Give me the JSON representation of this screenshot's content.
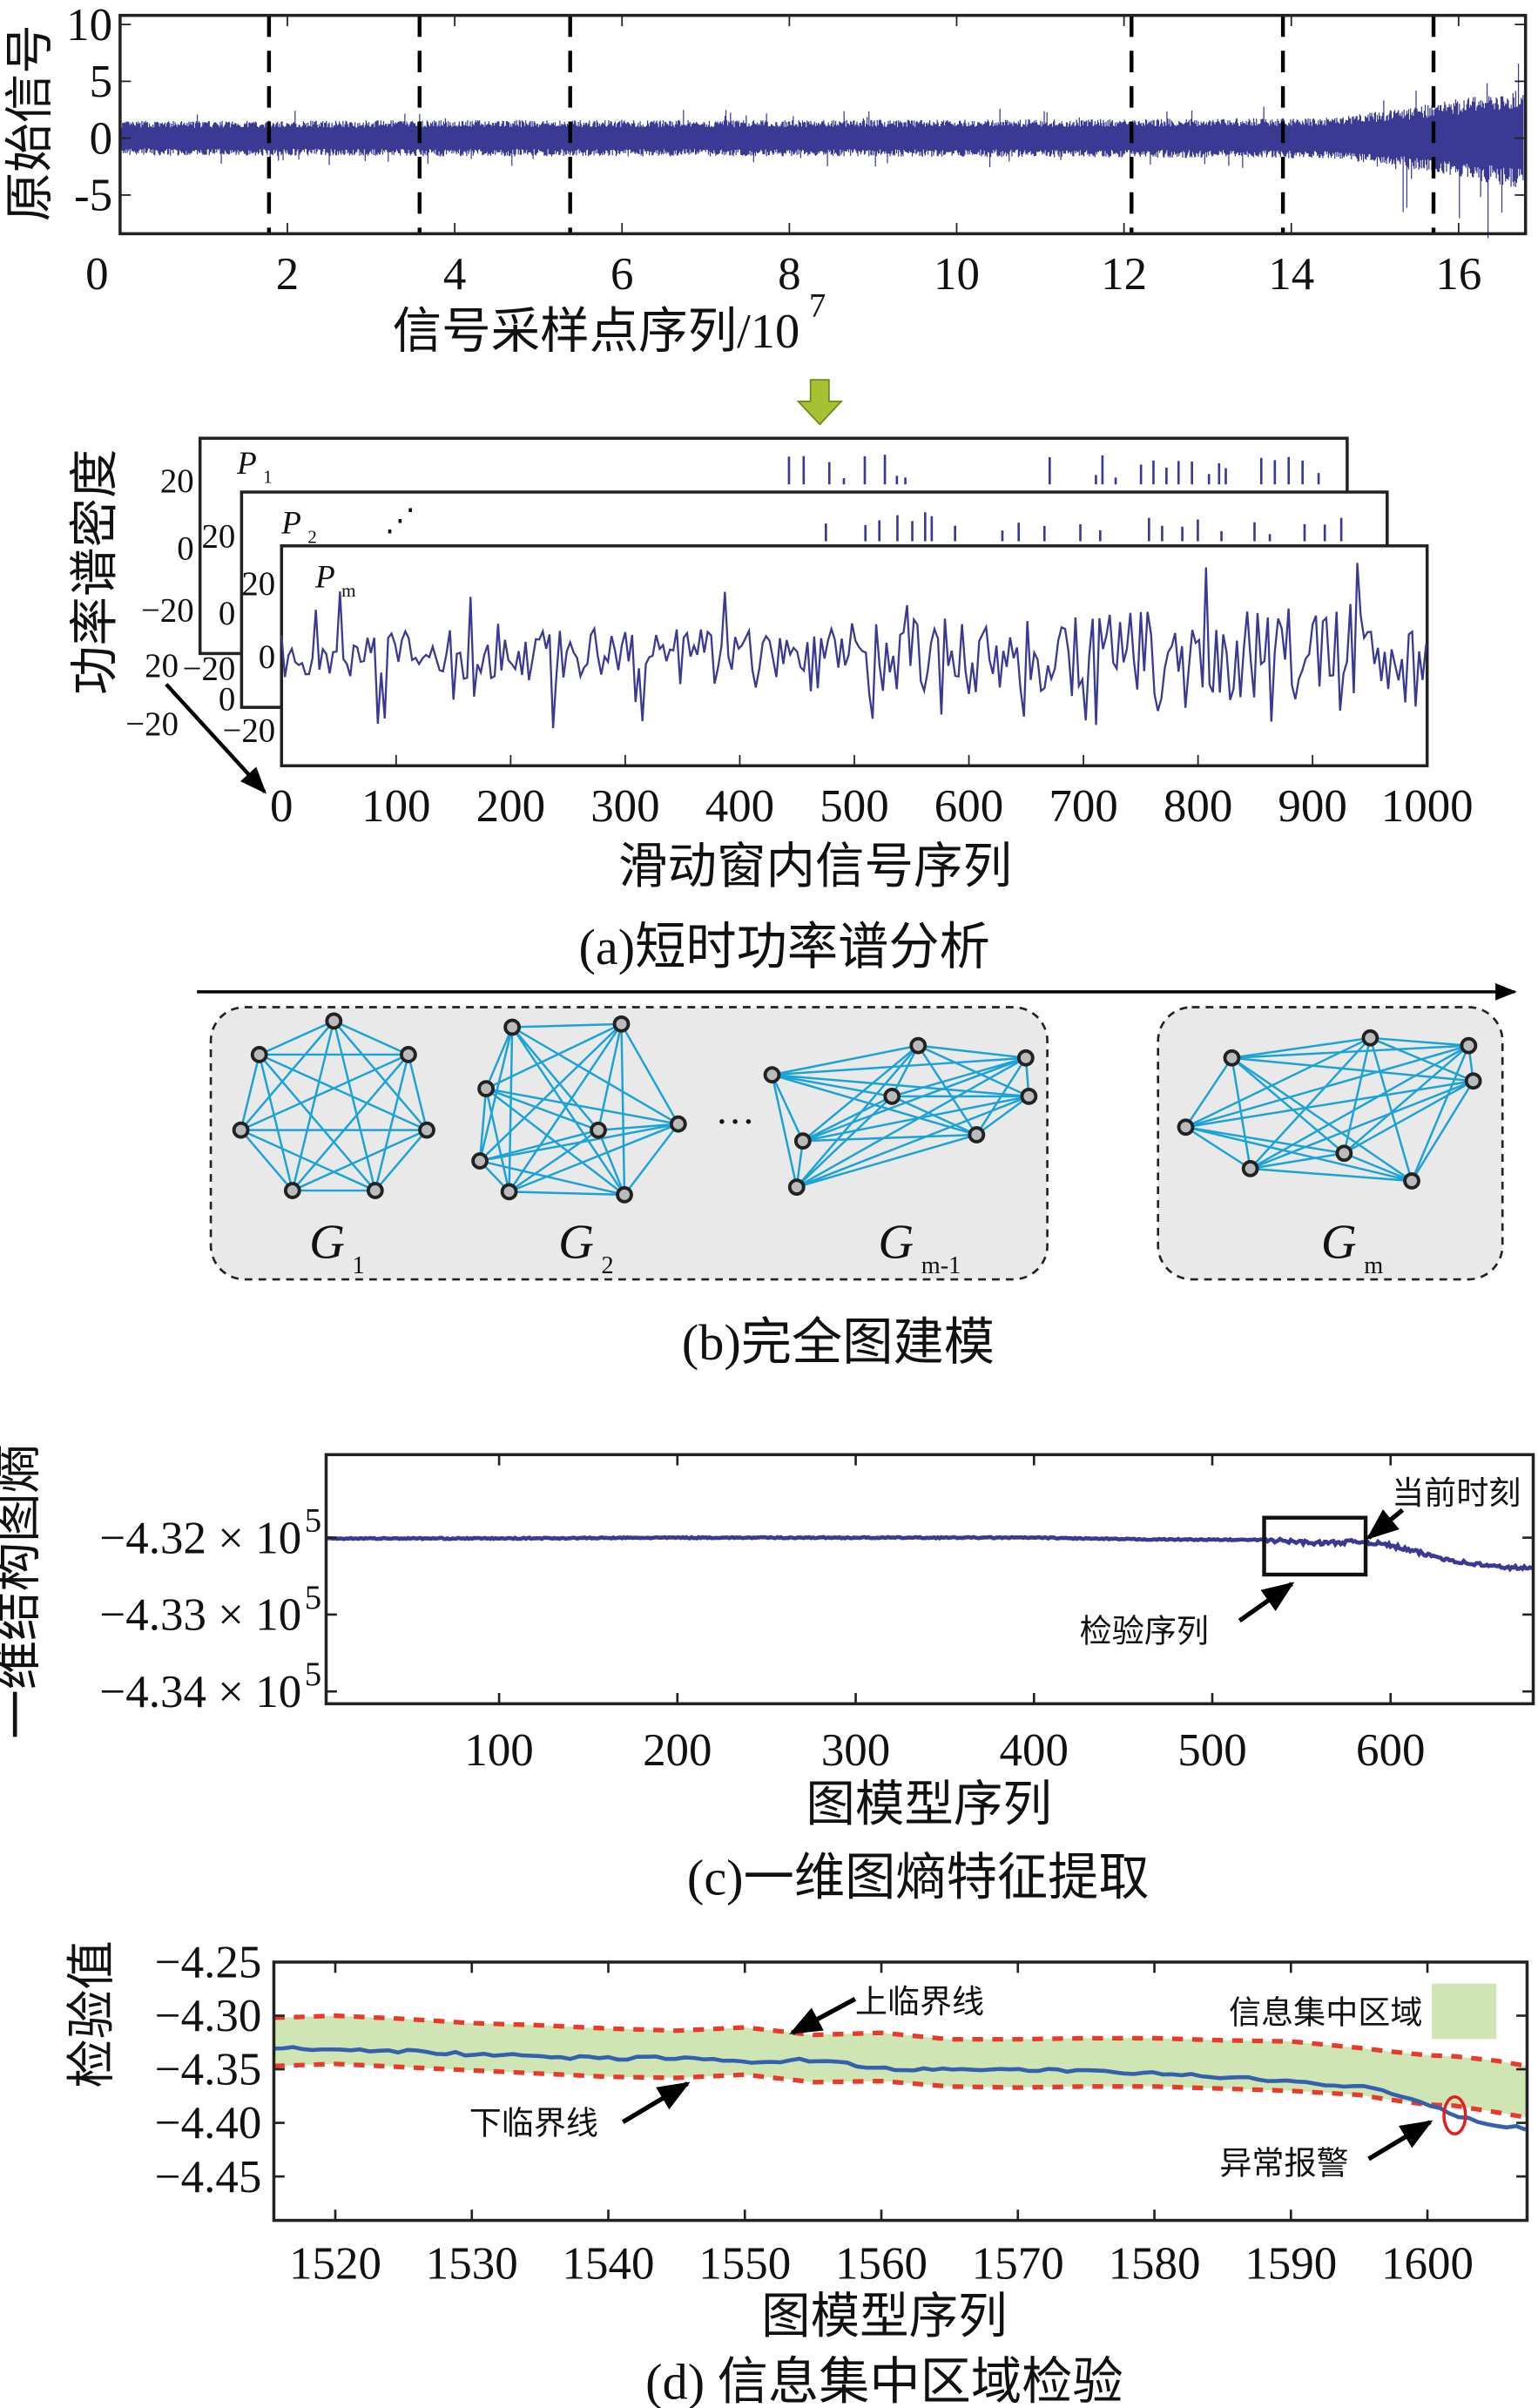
{
  "colors": {
    "signal": "#3a3a94",
    "edge": "#1ba3d8",
    "band": "#cfe6b4",
    "bound": "#e8392a",
    "alarm": "#e02020",
    "arrow_green": "#a6c233",
    "panel_bg": "#e9e9e9"
  },
  "chart_data": [
    {
      "id": "raw-signal",
      "type": "line",
      "ylabel": "原始信号",
      "xlabel": "信号采样点序列/10",
      "xlabel_exp": "7",
      "xlim": [
        0,
        16.8
      ],
      "ylim": [
        -8.4,
        10.8
      ],
      "xticks": [
        "0",
        "2",
        "4",
        "6",
        "8",
        "10",
        "12",
        "14",
        "16"
      ],
      "xtick_values": [
        0,
        2,
        4,
        6,
        8,
        10,
        12,
        14,
        16
      ],
      "yticks": [
        "10",
        "5",
        "0",
        "-5"
      ],
      "ytick_values": [
        10,
        5,
        0,
        -5
      ],
      "window_boundaries": [
        1.78,
        3.58,
        5.38,
        12.09,
        13.9,
        15.7
      ],
      "envelope": {
        "x": [
          0,
          4,
          8,
          12,
          14.5,
          15.5,
          16.8
        ],
        "amplitude": [
          1.5,
          1.6,
          1.6,
          1.7,
          1.8,
          2.8,
          4.5
        ]
      }
    },
    {
      "id": "short-time-psd",
      "type": "line",
      "ylabel": "功率谱密度",
      "xlabel": "滑动窗内信号序列",
      "caption": "(a)短时功率谱分析",
      "series_labels": [
        "P",
        "P",
        "P"
      ],
      "series_subs": [
        "1",
        "2",
        "m"
      ],
      "ellipsis": "⋰",
      "xlim": [
        0,
        1000
      ],
      "ylim": [
        -30,
        30
      ],
      "xticks": [
        "0",
        "100",
        "200",
        "300",
        "400",
        "500",
        "600",
        "700",
        "800",
        "900",
        "1000"
      ],
      "xtick_values": [
        0,
        100,
        200,
        300,
        400,
        500,
        600,
        700,
        800,
        900,
        1000
      ],
      "yticks": [
        "20",
        "0",
        "−20"
      ],
      "ytick_values": [
        20,
        0,
        -20
      ],
      "back_ticks": [
        "20",
        "0",
        "−20",
        "0",
        "20",
        "−20",
        "0",
        "20",
        "−20"
      ]
    },
    {
      "id": "complete-graphs",
      "type": "diagram",
      "caption": "(b)完全图建模",
      "graphs": [
        {
          "label": "G",
          "sub": "1",
          "nodes": 7
        },
        {
          "label": "G",
          "sub": "2",
          "nodes": 8
        },
        {
          "label": "G",
          "sub": "m-1",
          "nodes": 8
        },
        {
          "label": "G",
          "sub": "m",
          "nodes": 8
        }
      ],
      "ellipsis": "···"
    },
    {
      "id": "graph-entropy",
      "type": "line",
      "ylabel": "一维结构图熵",
      "xlabel": "图模型序列",
      "caption": "(c)一维图熵特征提取",
      "xlim": [
        3,
        680
      ],
      "ylim": [
        -4.3416,
        -4.3092
      ],
      "y_scale_exp": "5",
      "xticks": [
        "100",
        "200",
        "300",
        "400",
        "500",
        "600"
      ],
      "xtick_values": [
        100,
        200,
        300,
        400,
        500,
        600
      ],
      "yticks": [
        "−4.32 × 10",
        "−4.33 × 10",
        "−4.34 × 10"
      ],
      "ytick_values": [
        -4.32,
        -4.33,
        -4.34
      ],
      "x": [
        3,
        100,
        200,
        300,
        400,
        450,
        530,
        560,
        585,
        600,
        620,
        640,
        660,
        680
      ],
      "y": [
        -4.3201,
        -4.3201,
        -4.32,
        -4.32,
        -4.32,
        -4.3202,
        -4.3203,
        -4.3207,
        -4.3205,
        -4.321,
        -4.3222,
        -4.3232,
        -4.3238,
        -4.324
      ],
      "annotations": {
        "current": "当前时刻",
        "test_seq": "检验序列"
      },
      "test_window": [
        532,
        588
      ]
    },
    {
      "id": "info-concentration",
      "type": "area",
      "ylabel": "检验值",
      "xlabel": "图模型序列",
      "caption": "(d) 信息集中区域检验",
      "xlim": [
        1515.5,
        1607.3
      ],
      "ylim": [
        -4.491,
        -4.25
      ],
      "xticks": [
        "1520",
        "1530",
        "1540",
        "1550",
        "1560",
        "1570",
        "1580",
        "1590",
        "1600"
      ],
      "xtick_values": [
        1520,
        1530,
        1540,
        1550,
        1560,
        1570,
        1580,
        1590,
        1600
      ],
      "yticks": [
        "−4.25",
        "−4.30",
        "−4.35",
        "−4.40",
        "−4.45"
      ],
      "ytick_values": [
        -4.25,
        -4.3,
        -4.35,
        -4.4,
        -4.45
      ],
      "x": [
        1515.5,
        1520,
        1525,
        1530,
        1535,
        1540,
        1545,
        1550,
        1555,
        1560,
        1565,
        1570,
        1575,
        1580,
        1585,
        1590,
        1595,
        1597,
        1600,
        1602,
        1605,
        1607.3
      ],
      "value": [
        -4.33,
        -4.331,
        -4.333,
        -4.336,
        -4.338,
        -4.34,
        -4.339,
        -4.344,
        -4.341,
        -4.349,
        -4.351,
        -4.35,
        -4.352,
        -4.354,
        -4.357,
        -4.362,
        -4.366,
        -4.37,
        -4.382,
        -4.393,
        -4.402,
        -4.405
      ],
      "upper": [
        -4.302,
        -4.3,
        -4.303,
        -4.307,
        -4.309,
        -4.312,
        -4.314,
        -4.311,
        -4.318,
        -4.316,
        -4.322,
        -4.322,
        -4.321,
        -4.321,
        -4.323,
        -4.324,
        -4.33,
        -4.333,
        -4.337,
        -4.338,
        -4.342,
        -4.347
      ],
      "lower": [
        -4.347,
        -4.345,
        -4.348,
        -4.351,
        -4.354,
        -4.357,
        -4.358,
        -4.355,
        -4.362,
        -4.361,
        -4.366,
        -4.367,
        -4.366,
        -4.366,
        -4.368,
        -4.37,
        -4.374,
        -4.378,
        -4.383,
        -4.384,
        -4.39,
        -4.395
      ],
      "legend": {
        "label": "信息集中区域",
        "position": "top-right"
      },
      "annotations": {
        "upper": "上临界线",
        "lower": "下临界线",
        "alarm": "异常报警"
      },
      "alarm_x": 1602
    }
  ]
}
